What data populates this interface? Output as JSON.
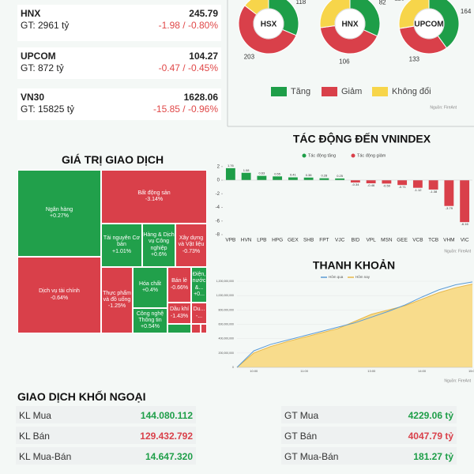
{
  "indices": [
    {
      "name": "HNX",
      "value": "245.79",
      "gt": "GT: 2961 tỷ",
      "change": "-1.98 / -0.80%"
    },
    {
      "name": "UPCOM",
      "value": "104.27",
      "gt": "GT: 872 tỷ",
      "change": "-0.47 / -0.45%"
    },
    {
      "name": "VN30",
      "value": "1628.06",
      "gt": "GT: 15825 tỷ",
      "change": "-15.85 / -0.96%"
    }
  ],
  "breadth": {
    "legend": [
      {
        "name": "Tăng",
        "color": "#1e9e48"
      },
      {
        "name": "Giảm",
        "color": "#d9404a"
      },
      {
        "name": "Không đổi",
        "color": "#f7d54a"
      }
    ],
    "source": "Nguồn: FireAnt"
  },
  "treemap": {
    "title": "GIÁ TRỊ GIAO DỊCH",
    "items": [
      {
        "name": "Ngân hàng",
        "change": "+0.27%"
      },
      {
        "name": "Bất động sản",
        "change": "-3.14%"
      },
      {
        "name": "Dịch vụ tài chính",
        "change": "-0.64%"
      },
      {
        "name": "Tài nguyên Cơ bản",
        "change": "+1.01%"
      },
      {
        "name": "Hàng & Dịch vụ Công nghiệp",
        "change": "+0.6%"
      },
      {
        "name": "Xây dựng và Vật liệu",
        "change": "-0.73%"
      },
      {
        "name": "Thực phẩm và đồ uống",
        "change": "-1.25%"
      },
      {
        "name": "Hóa chất",
        "change": "+0.4%"
      },
      {
        "name": "Công nghệ Thông tin",
        "change": "+0.54%"
      },
      {
        "name": "Bán lẻ",
        "change": "-0.66%"
      },
      {
        "name": "Điện, nước &...",
        "change": "+0..."
      },
      {
        "name": "Dầu khí",
        "change": "-1.43%"
      },
      {
        "name": "Du...",
        "change": "-..."
      }
    ]
  },
  "foreign": {
    "title": "GIAO DỊCH KHỐI NGOẠI",
    "rows": [
      [
        {
          "label": "KL Mua",
          "value": "144.080.112"
        },
        {
          "label": "GT Mua",
          "value": "4229.06 tỷ"
        }
      ],
      [
        {
          "label": "KL Bán",
          "value": "129.432.792"
        },
        {
          "label": "GT Bán",
          "value": "4047.79 tỷ"
        }
      ],
      [
        {
          "label": "KL Mua-Bán",
          "value": "14.647.320"
        },
        {
          "label": "GT Mua-Bán",
          "value": "181.27 tỷ"
        }
      ]
    ]
  },
  "chart_data": [
    {
      "type": "pie",
      "title": "HSX",
      "values": [
        118,
        203,
        55
      ]
    },
    {
      "type": "pie",
      "title": "HNX",
      "values": [
        82,
        106,
        70
      ]
    },
    {
      "type": "pie",
      "title": "UPCOM",
      "values": [
        164,
        133,
        113
      ]
    },
    {
      "type": "bar",
      "title": "TÁC ĐỘNG ĐẾN VNINDEX",
      "categories": [
        "VPB",
        "HVN",
        "LPB",
        "HPG",
        "GEX",
        "SHB",
        "FPT",
        "VJC",
        "BID",
        "VPL",
        "MSN",
        "GEE",
        "VCB",
        "TCB",
        "VHM",
        "VIC"
      ],
      "values": [
        1.76,
        1.08,
        0.63,
        0.55,
        0.41,
        0.38,
        0.28,
        0.25,
        -0.34,
        -0.46,
        -0.5,
        -0.71,
        -1.12,
        -1.38,
        -3.79,
        -6.16
      ],
      "value_labels": [
        "1.76",
        "1.08",
        "0.63",
        "0.55",
        "0.41",
        "0.38",
        "0.28",
        "0.25",
        "-0.34",
        "-0.46",
        "-0.50",
        "-0.71",
        "-1.12",
        "-1.38",
        "-3.79",
        "-6.16"
      ],
      "ylim": [
        -8,
        2.5
      ],
      "yticks": [
        2,
        0,
        -2,
        -4,
        -6,
        -8
      ],
      "legend": [
        {
          "name": "Tác động tăng",
          "color": "#1e9e48"
        },
        {
          "name": "Tác động giảm",
          "color": "#d9404a"
        }
      ],
      "source": "Nguồn: FireAnt"
    },
    {
      "type": "line",
      "title": "THANH KHOẢN",
      "categories": [
        null,
        "10:00",
        null,
        null,
        "11:00",
        null,
        null,
        null,
        "13:00",
        null,
        null,
        "14:00",
        null,
        null,
        "15:00"
      ],
      "series": [
        {
          "name": "Hôm qua",
          "color": "#5b9bd5",
          "values": [
            0,
            230000000,
            320000000,
            380000000,
            440000000,
            500000000,
            560000000,
            620000000,
            700000000,
            780000000,
            870000000,
            980000000,
            1080000000,
            1150000000,
            1190000000
          ]
        },
        {
          "name": "Hôm nay",
          "color": "#e8b84a",
          "fill": "#f8dc8c",
          "values": [
            0,
            200000000,
            290000000,
            360000000,
            420000000,
            480000000,
            540000000,
            640000000,
            740000000,
            800000000,
            860000000,
            950000000,
            1040000000,
            1110000000,
            1160000000
          ]
        }
      ],
      "ylim": [
        0,
        1200000000
      ],
      "yticks": [
        0,
        {
          "value": 200000000,
          "label": "200,000,000"
        },
        {
          "value": 400000000,
          "label": "400,000,000"
        },
        {
          "value": 600000000,
          "label": "600,000,000"
        },
        {
          "value": 800000000,
          "label": "800,000,000"
        },
        {
          "value": 1000000000,
          "label": "1,000,000,000"
        },
        {
          "value": 1200000000,
          "label": "1,200,000,000"
        }
      ],
      "grid": true,
      "source": "Nguồn: FireAnt"
    }
  ]
}
